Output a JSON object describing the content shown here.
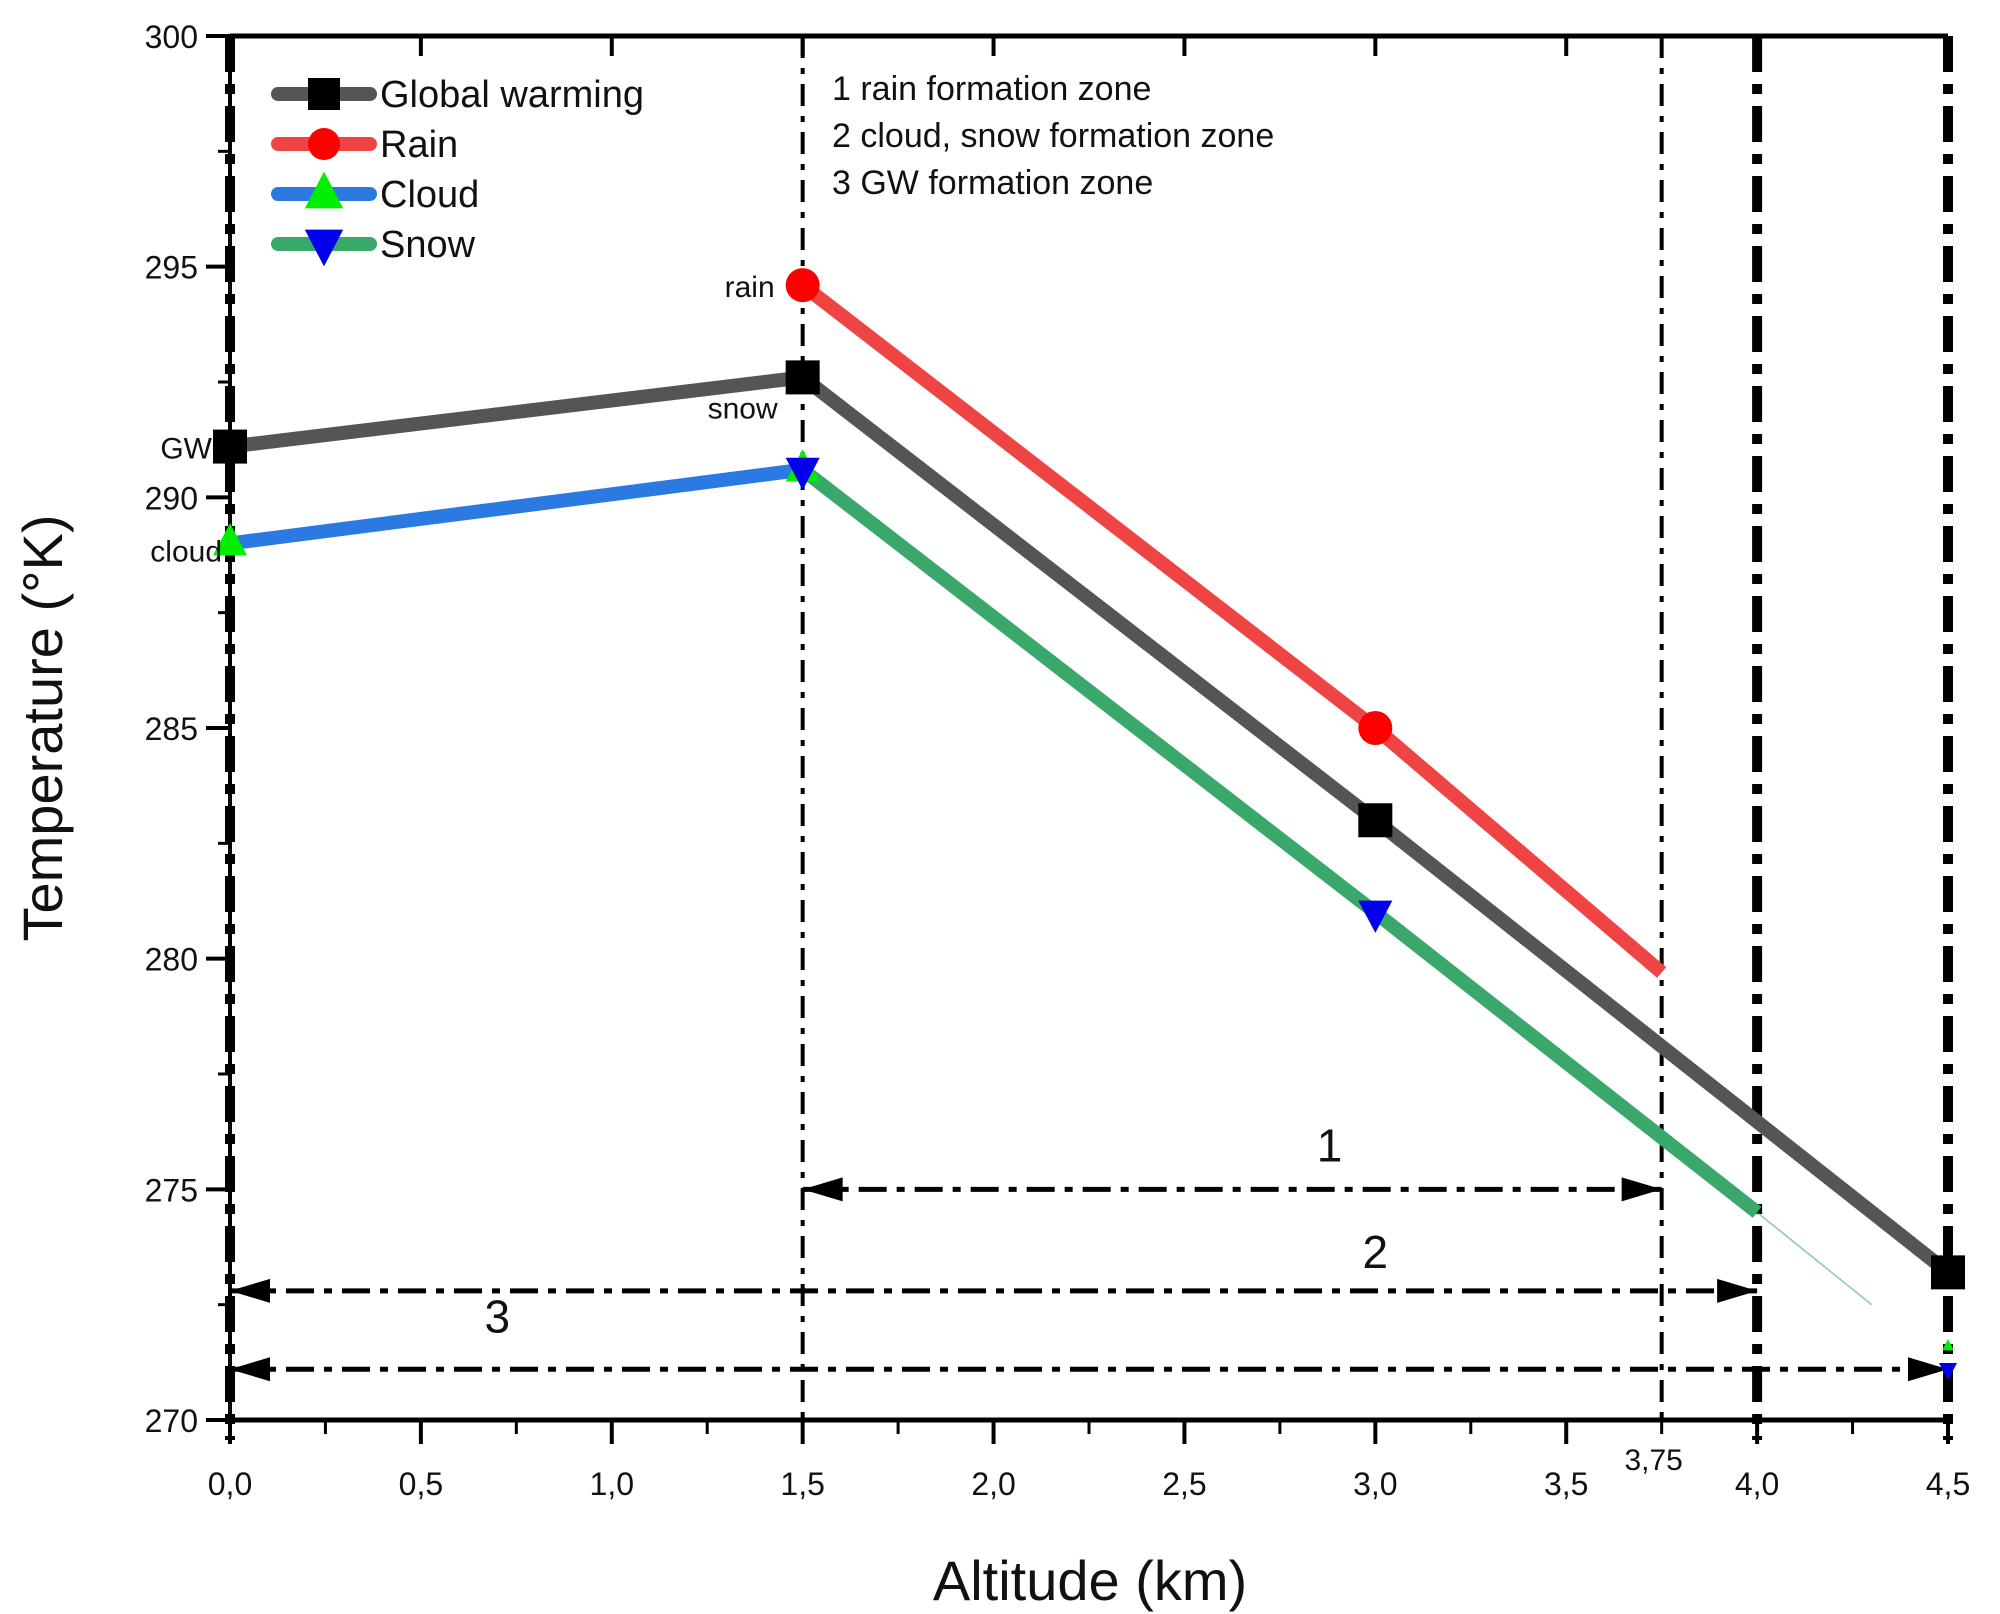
{
  "chart_data": {
    "type": "line",
    "xlabel": "Altitude (km)",
    "ylabel": "Temperature (°K)",
    "xlim": [
      0,
      4.5
    ],
    "ylim": [
      270,
      300
    ],
    "x_ticks": [
      "0,0",
      "0,5",
      "1,0",
      "1,5",
      "2,0",
      "2,5",
      "3,0",
      "3,5",
      "4,0",
      "4,5"
    ],
    "x_tick_values": [
      0,
      0.5,
      1,
      1.5,
      2,
      2.5,
      3,
      3.5,
      4,
      4.5
    ],
    "extra_x_tick": {
      "value": 3.75,
      "label": "3,75"
    },
    "y_ticks": [
      "270",
      "275",
      "280",
      "285",
      "290",
      "295",
      "300"
    ],
    "y_tick_values": [
      270,
      275,
      280,
      285,
      290,
      295,
      300
    ],
    "grid": false,
    "legend_position": "top-left",
    "series": [
      {
        "name": "Global warming",
        "color": "#555555",
        "marker": "square",
        "marker_color": "#000000",
        "x": [
          0,
          1.5,
          3.0,
          4.5
        ],
        "y": [
          291.1,
          292.6,
          283.0,
          273.2
        ]
      },
      {
        "name": "Rain",
        "color": "#ee4444",
        "marker": "circle",
        "marker_color": "#ff0000",
        "x": [
          1.5,
          3.0,
          3.75
        ],
        "y": [
          294.6,
          285.0,
          279.7
        ],
        "marker_x": [
          1.5,
          3.0
        ]
      },
      {
        "name": "Cloud",
        "color": "#2a7ae2",
        "marker": "triangle-up",
        "marker_color": "#00ee00",
        "x": [
          0,
          1.5
        ],
        "y": [
          289.0,
          290.6
        ]
      },
      {
        "name": "Snow",
        "color": "#3aa86a",
        "marker": "triangle-down",
        "marker_color": "#0000ee",
        "x": [
          1.5,
          3.0,
          4.0
        ],
        "y": [
          290.6,
          281.0,
          274.5
        ],
        "marker_x": [
          1.5,
          3.0
        ]
      }
    ],
    "vertical_lines": [
      {
        "x": 0,
        "style": "thick"
      },
      {
        "x": 1.5,
        "style": "thin"
      },
      {
        "x": 3.75,
        "style": "thin"
      },
      {
        "x": 4.0,
        "style": "thick"
      },
      {
        "x": 4.5,
        "style": "thick"
      }
    ],
    "zone_arrows": [
      {
        "label": "1",
        "from": 1.5,
        "to": 3.75,
        "y": 275.0,
        "label_x": 2.88,
        "label_y": 275.6
      },
      {
        "label": "2",
        "from": 0,
        "to": 4.0,
        "y": 272.8,
        "label_x": 3.0,
        "label_y": 273.3
      },
      {
        "label": "3",
        "from": 0,
        "to": 4.5,
        "y": 271.1,
        "label_x": 0.7,
        "label_y": 271.9
      }
    ],
    "zone_notes": [
      "1 rain formation zone",
      "2 cloud, snow formation zone",
      "3 GW formation zone"
    ],
    "point_labels": [
      {
        "text": "GW",
        "x": 0,
        "y": 291.1
      },
      {
        "text": "cloud",
        "x": 0,
        "y": 289.0
      },
      {
        "text": "rain",
        "x": 1.5,
        "y": 294.6
      },
      {
        "text": "snow",
        "x": 1.5,
        "y": 291.1
      }
    ]
  }
}
